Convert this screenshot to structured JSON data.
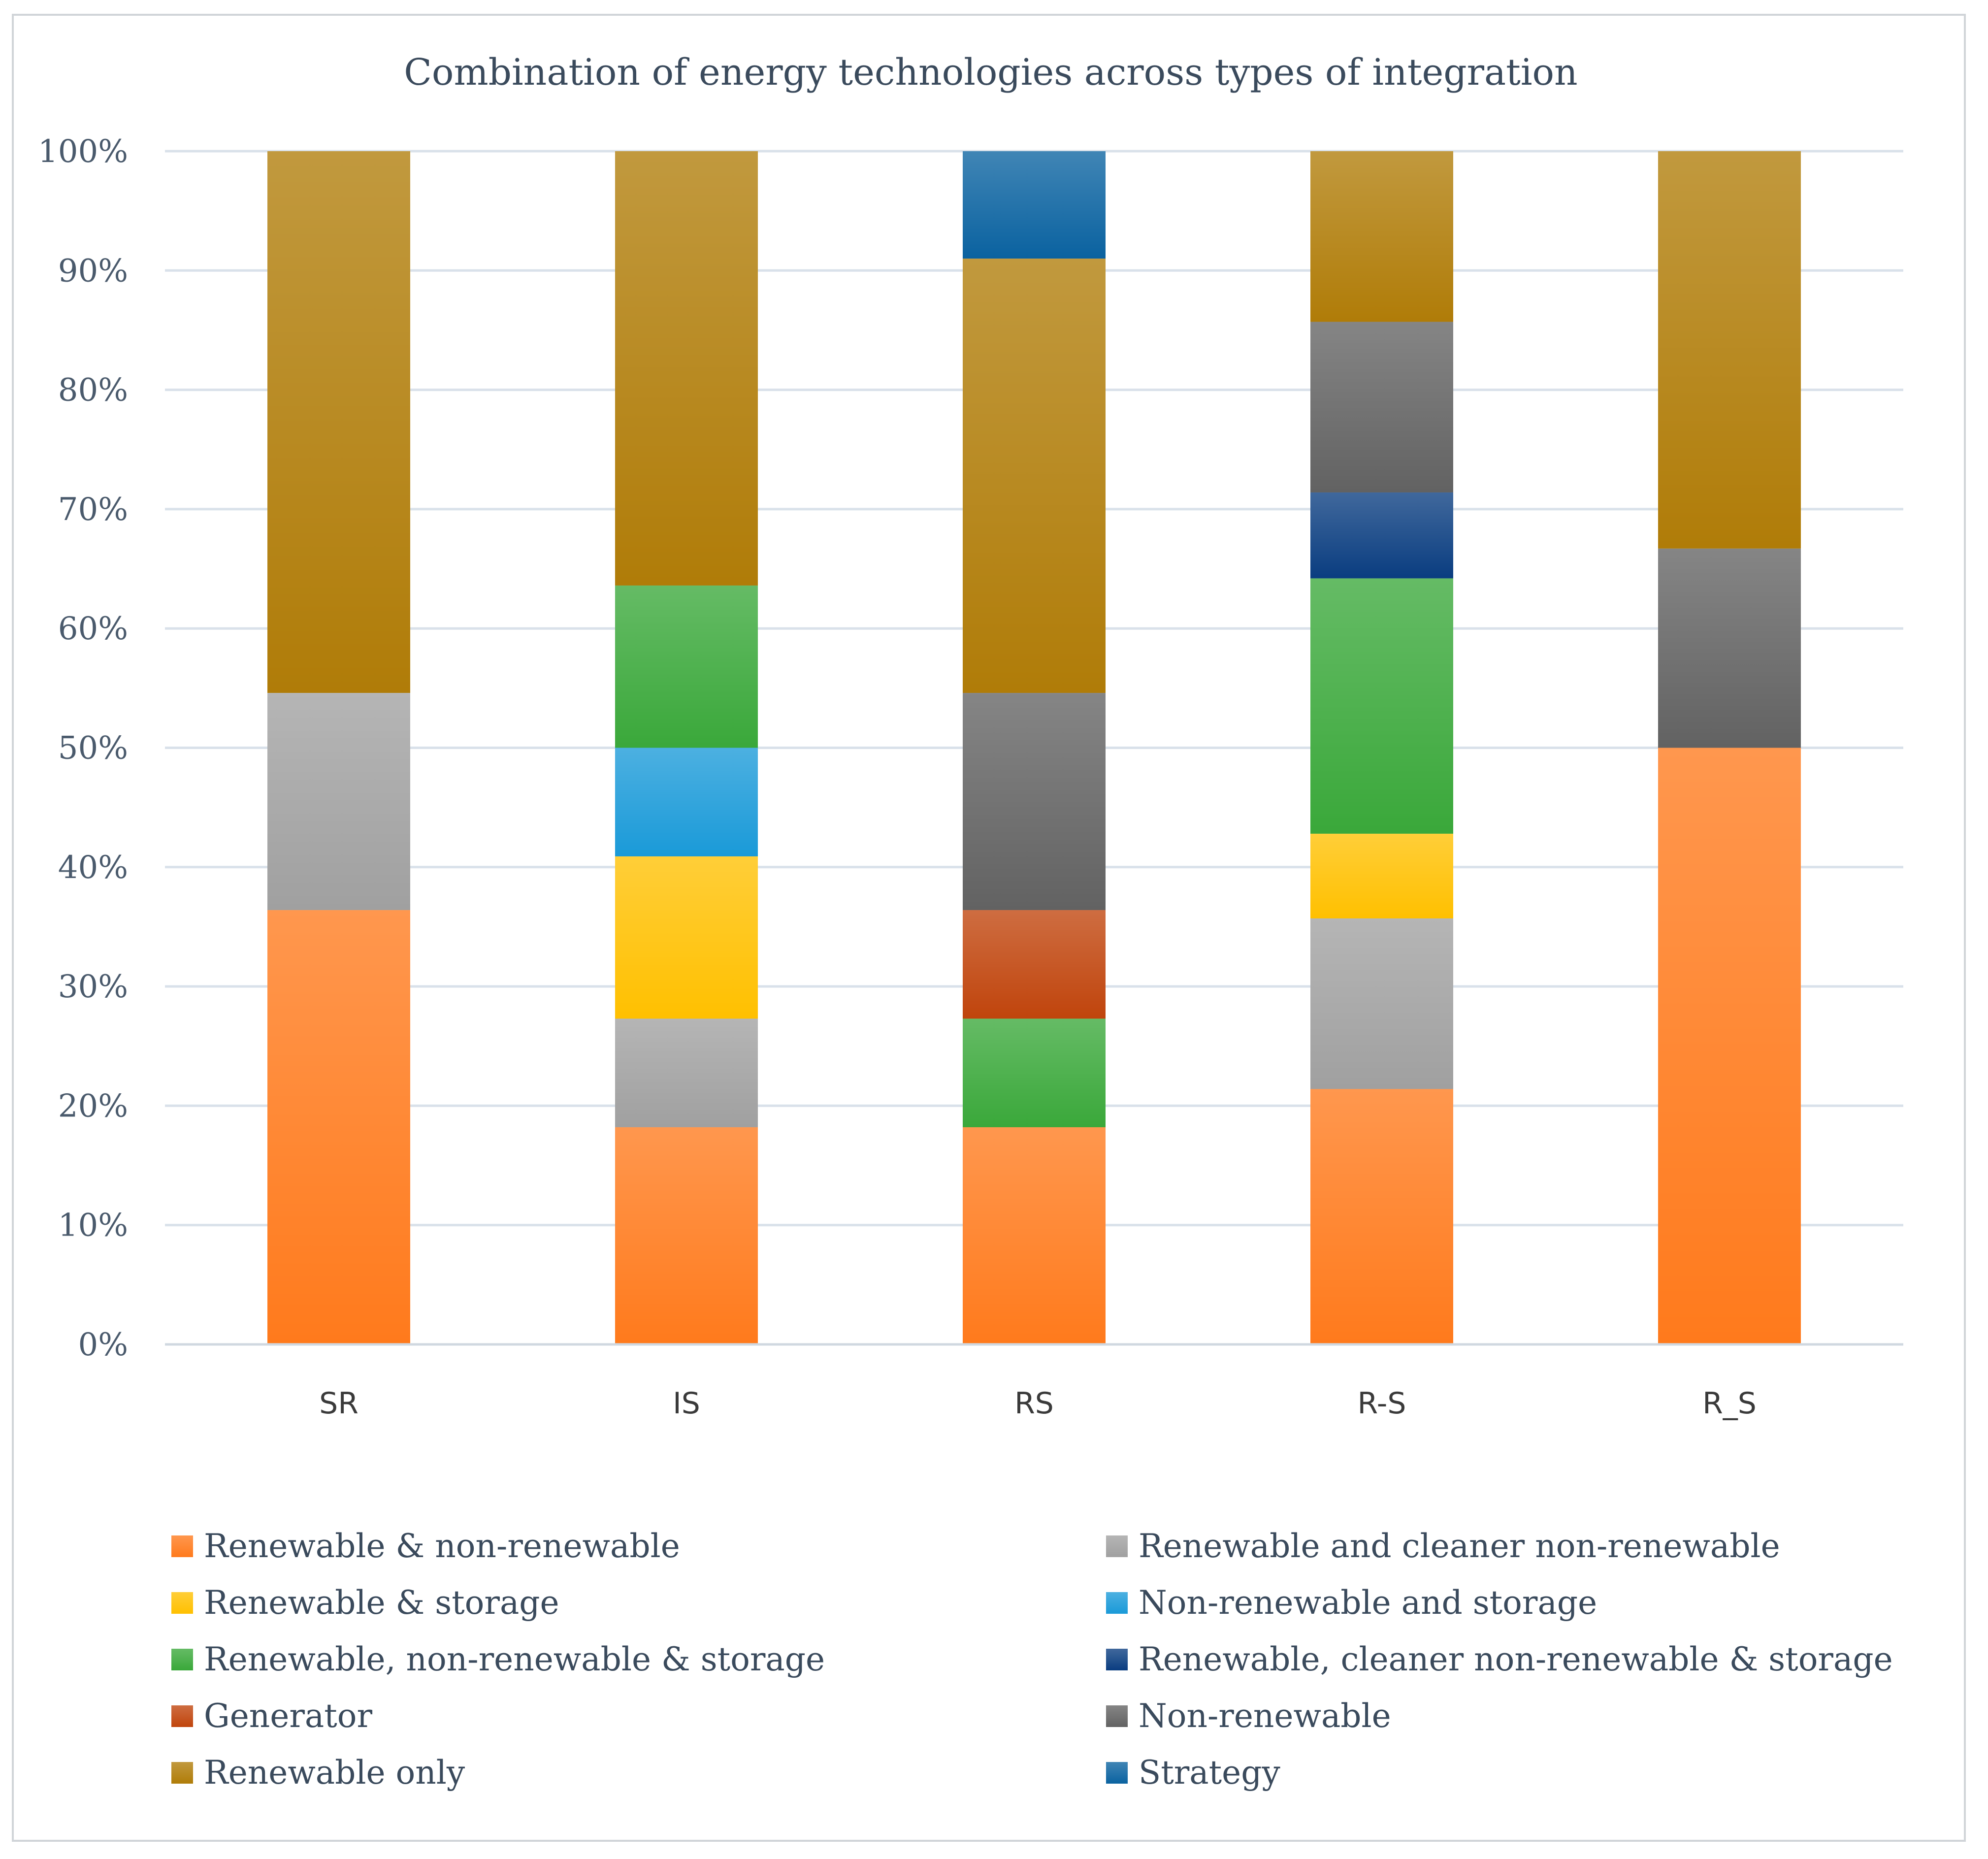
{
  "chart_data": {
    "type": "bar",
    "stacked": true,
    "title": "Combination of energy technologies across types of integration",
    "xlabel": "",
    "ylabel": "",
    "ylim": [
      0,
      100
    ],
    "y_ticks": [
      "0%",
      "10%",
      "20%",
      "30%",
      "40%",
      "50%",
      "60%",
      "70%",
      "80%",
      "90%",
      "100%"
    ],
    "grid": true,
    "legend_position": "bottom",
    "categories": [
      "SR",
      "IS",
      "RS",
      "R-S",
      "R_S"
    ],
    "series": [
      {
        "name": "Renewable & non-renewable",
        "color": "#ff7a1c",
        "values": [
          36.4,
          18.2,
          18.2,
          21.4,
          50.0
        ]
      },
      {
        "name": "Renewable and cleaner non-renewable",
        "color": "#a0a0a0",
        "values": [
          18.2,
          9.1,
          0,
          14.3,
          0
        ]
      },
      {
        "name": "Renewable & storage",
        "color": "#ffc000",
        "values": [
          0,
          13.6,
          0,
          7.1,
          0
        ]
      },
      {
        "name": "Non-renewable and storage",
        "color": "#1a9ad8",
        "values": [
          0,
          9.1,
          0,
          0,
          0
        ]
      },
      {
        "name": "Renewable, non-renewable & storage",
        "color": "#3aa83a",
        "values": [
          0,
          13.6,
          9.1,
          21.4,
          0
        ]
      },
      {
        "name": "Renewable, cleaner non-renewable & storage",
        "color": "#0a3d80",
        "values": [
          0,
          0,
          0,
          7.2,
          0
        ]
      },
      {
        "name": "Generator",
        "color": "#c0440c",
        "values": [
          0,
          0,
          9.1,
          0,
          0
        ]
      },
      {
        "name": "Non-renewable",
        "color": "#626262",
        "values": [
          0,
          0,
          18.2,
          14.3,
          16.7
        ]
      },
      {
        "name": "Renewable only",
        "color": "#b07c08",
        "values": [
          45.4,
          36.4,
          36.4,
          14.3,
          33.3
        ]
      },
      {
        "name": "Strategy",
        "color": "#0a62a0",
        "values": [
          0,
          0,
          9.0,
          0,
          0
        ]
      }
    ]
  }
}
